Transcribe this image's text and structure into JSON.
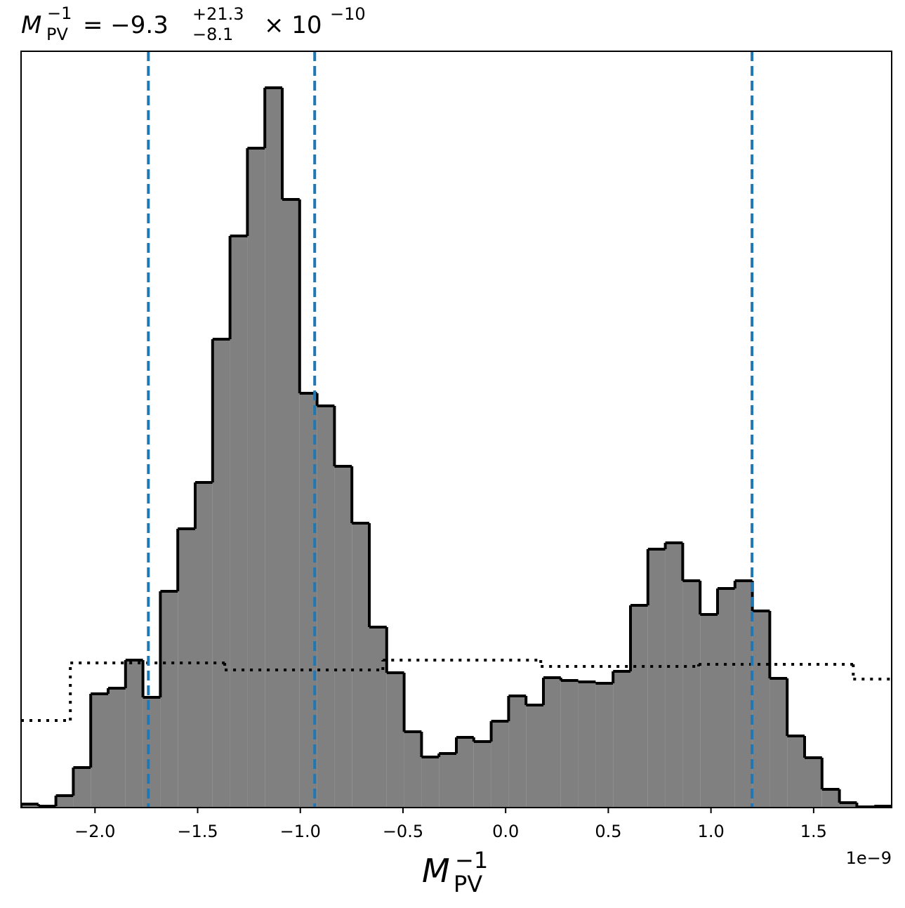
{
  "chart_data": {
    "type": "histogram",
    "title": {
      "symbol": "M",
      "sup": "−1",
      "sub": "PV",
      "eq": "= −9.3",
      "upper": "+21.3",
      "lower": "−8.1",
      "times": "× 10",
      "exp": "−10"
    },
    "xlabel": {
      "symbol": "M",
      "sup": "−1",
      "sub": "PV"
    },
    "offset_text": "1e−9",
    "xlim": [
      -2.36,
      1.88
    ],
    "ylim": [
      0,
      1077
    ],
    "xticks": [
      {
        "value": -2,
        "label": "−2.0"
      },
      {
        "value": -1.5,
        "label": "−1.5"
      },
      {
        "value": -1,
        "label": "−1.0"
      },
      {
        "value": -0.5,
        "label": "−0.5"
      },
      {
        "value": 0,
        "label": "0.0"
      },
      0.5,
      {
        "value": 1,
        "label": "1.0"
      },
      1.5
    ],
    "series": [
      {
        "color": "#808080",
        "edgecolor": "#000000",
        "linestyle": "solid",
        "bins": [
          -2.36,
          -2.2752,
          -2.1904,
          -2.1056,
          -2.0208,
          -1.936,
          -1.8512,
          -1.7664,
          -1.6816,
          -1.5968,
          -1.512,
          -1.4272,
          -1.3424,
          -1.2576,
          -1.1728,
          -1.088,
          -1.0032,
          -0.9184,
          -0.8336,
          -0.7488,
          -0.664,
          -0.5792,
          -0.4944,
          -0.4096,
          -0.3248,
          -0.24,
          -0.1552,
          -0.0704,
          0.0144,
          0.0992,
          0.184,
          0.2688,
          0.3536,
          0.4384,
          0.5232,
          0.608,
          0.6928,
          0.7776,
          0.8624,
          0.9472,
          1.032,
          1.1168,
          1.2016,
          1.2864,
          1.3712,
          1.456,
          1.5408,
          1.6256,
          1.7104,
          1.7952,
          1.88
        ],
        "values": [
          5,
          2,
          17,
          57,
          162,
          170,
          210,
          157,
          308,
          397,
          463,
          667,
          814,
          939,
          1025,
          866,
          590,
          572,
          486,
          405,
          257,
          192,
          108,
          72,
          77,
          100,
          94,
          123,
          159,
          146,
          185,
          181,
          179,
          177,
          194,
          288,
          368,
          377,
          323,
          275,
          312,
          323,
          280,
          184,
          102,
          71,
          26,
          7,
          1,
          2
        ]
      },
      {
        "color": null,
        "edgecolor": "#000000",
        "linestyle": "dotted",
        "bins": [
          -2.36,
          -2.12,
          -1.368,
          -0.598,
          0.171,
          0.94,
          1.693,
          1.88
        ],
        "values": [
          124,
          206,
          196,
          210,
          201,
          204,
          183
        ]
      }
    ],
    "vlines": {
      "values": [
        -1.74,
        -0.93,
        1.2
      ],
      "color": "#1f77b4"
    }
  }
}
